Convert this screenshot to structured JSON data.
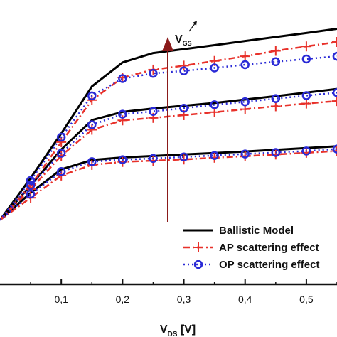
{
  "chart_data": {
    "type": "line",
    "xlabel_main": "V",
    "xlabel_sub": "DS",
    "xlabel_unit": " [V]",
    "arrow_label_main": "V",
    "arrow_label_sub": "GS",
    "xlim": [
      0.0,
      0.55
    ],
    "ylim": [
      0.0,
      1.0
    ],
    "x_ticks": [
      0.1,
      0.2,
      0.3,
      0.4,
      0.5
    ],
    "x_tick_labels": [
      "0,1",
      "0,2",
      "0,3",
      "0,4",
      "0,5"
    ],
    "grid": false,
    "legend_position": "bottom-right",
    "colors": {
      "ballistic": "#000000",
      "ap": "#e8312a",
      "op": "#2a2ad6",
      "arrow": "#8a1a1a"
    },
    "series": [
      {
        "name": "Ballistic Model",
        "style": "solid",
        "curves": [
          {
            "x": [
              0.0,
              0.05,
              0.1,
              0.15,
              0.2,
              0.25,
              0.3,
              0.35,
              0.4,
              0.45,
              0.5,
              0.55
            ],
            "y": [
              0.26,
              0.43,
              0.61,
              0.8,
              0.897,
              0.935,
              0.951,
              0.967,
              0.984,
              1.0,
              1.016,
              1.033
            ]
          },
          {
            "x": [
              0.0,
              0.05,
              0.1,
              0.15,
              0.2,
              0.25,
              0.3,
              0.35,
              0.4,
              0.45,
              0.5,
              0.55
            ],
            "y": [
              0.26,
              0.4,
              0.545,
              0.664,
              0.697,
              0.711,
              0.722,
              0.733,
              0.747,
              0.761,
              0.775,
              0.79
            ]
          },
          {
            "x": [
              0.0,
              0.05,
              0.1,
              0.15,
              0.2,
              0.25,
              0.3,
              0.35,
              0.4,
              0.45,
              0.5,
              0.55
            ],
            "y": [
              0.26,
              0.37,
              0.465,
              0.503,
              0.513,
              0.519,
              0.525,
              0.531,
              0.537,
              0.544,
              0.551,
              0.558
            ]
          }
        ]
      },
      {
        "name": "AP scattering effect",
        "style": "dash-dot-plus",
        "curves": [
          {
            "x": [
              0.0,
              0.05,
              0.1,
              0.15,
              0.2,
              0.25,
              0.3,
              0.35,
              0.4,
              0.45,
              0.5,
              0.55
            ],
            "y": [
              0.26,
              0.4,
              0.575,
              0.745,
              0.836,
              0.868,
              0.884,
              0.903,
              0.922,
              0.944,
              0.962,
              0.98
            ]
          },
          {
            "x": [
              0.0,
              0.05,
              0.1,
              0.15,
              0.2,
              0.25,
              0.3,
              0.35,
              0.4,
              0.45,
              0.5,
              0.55
            ],
            "y": [
              0.26,
              0.385,
              0.52,
              0.625,
              0.663,
              0.673,
              0.684,
              0.696,
              0.708,
              0.72,
              0.731,
              0.741
            ]
          },
          {
            "x": [
              0.0,
              0.05,
              0.1,
              0.15,
              0.2,
              0.25,
              0.3,
              0.35,
              0.4,
              0.45,
              0.5,
              0.55
            ],
            "y": [
              0.26,
              0.35,
              0.44,
              0.483,
              0.495,
              0.5,
              0.505,
              0.512,
              0.518,
              0.525,
              0.532,
              0.539
            ]
          }
        ]
      },
      {
        "name": "OP scattering effect",
        "style": "dotted-circle",
        "curves": [
          {
            "x": [
              0.0,
              0.05,
              0.1,
              0.15,
              0.2,
              0.25,
              0.3,
              0.35,
              0.4,
              0.45,
              0.5,
              0.55
            ],
            "y": [
              0.26,
              0.42,
              0.595,
              0.762,
              0.832,
              0.853,
              0.863,
              0.875,
              0.888,
              0.9,
              0.911,
              0.922
            ]
          },
          {
            "x": [
              0.0,
              0.05,
              0.1,
              0.15,
              0.2,
              0.25,
              0.3,
              0.35,
              0.4,
              0.45,
              0.5,
              0.55
            ],
            "y": [
              0.26,
              0.4,
              0.53,
              0.645,
              0.688,
              0.699,
              0.712,
              0.726,
              0.738,
              0.751,
              0.763,
              0.775
            ]
          },
          {
            "x": [
              0.0,
              0.05,
              0.1,
              0.15,
              0.2,
              0.25,
              0.3,
              0.35,
              0.4,
              0.45,
              0.5,
              0.55
            ],
            "y": [
              0.26,
              0.365,
              0.456,
              0.496,
              0.504,
              0.509,
              0.515,
              0.521,
              0.527,
              0.533,
              0.539,
              0.547
            ]
          }
        ]
      }
    ]
  }
}
